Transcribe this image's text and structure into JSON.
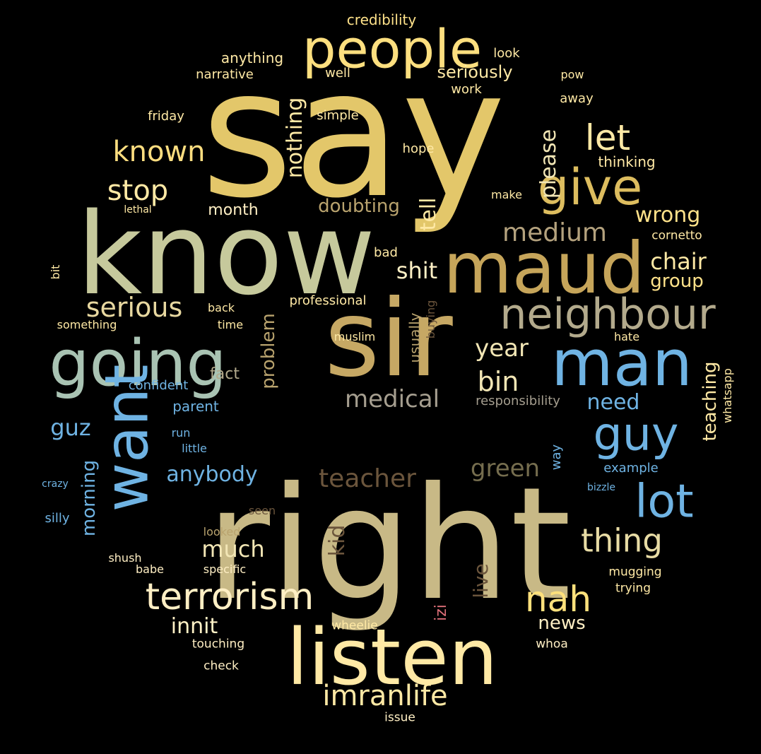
{
  "words": [
    {
      "text": "say",
      "color": "#E3C76A",
      "vertical": false
    },
    {
      "text": "know",
      "color": "#C6C99C",
      "vertical": false
    },
    {
      "text": "right",
      "color": "#C8B986",
      "vertical": false
    },
    {
      "text": "sir",
      "color": "#C6A864",
      "vertical": false
    },
    {
      "text": "listen",
      "color": "#FFE9A5",
      "vertical": false
    },
    {
      "text": "people",
      "color": "#FDDF7F",
      "vertical": false
    },
    {
      "text": "maud",
      "color": "#C6A55A",
      "vertical": false
    },
    {
      "text": "going",
      "color": "#A9C3B3",
      "vertical": false
    },
    {
      "text": "man",
      "color": "#6FB3E3",
      "vertical": false
    },
    {
      "text": "want",
      "color": "#6FB3E3",
      "vertical": true
    },
    {
      "text": "give",
      "color": "#DDBD5F",
      "vertical": false
    },
    {
      "text": "neighbour",
      "color": "#B3AA8C",
      "vertical": false
    },
    {
      "text": "guy",
      "color": "#6FB3E3",
      "vertical": false
    },
    {
      "text": "lot",
      "color": "#6FB3E3",
      "vertical": false
    },
    {
      "text": "terrorism",
      "color": "#FFEFC4",
      "vertical": false
    },
    {
      "text": "imranlife",
      "color": "#FFE9A5",
      "vertical": false
    },
    {
      "text": "nah",
      "color": "#FFE17C",
      "vertical": false
    },
    {
      "text": "thing",
      "color": "#E8DCA5",
      "vertical": false
    },
    {
      "text": "let",
      "color": "#FFE9A5",
      "vertical": false
    },
    {
      "text": "known",
      "color": "#FFDE80",
      "vertical": false
    },
    {
      "text": "stop",
      "color": "#FFE9A5",
      "vertical": false
    },
    {
      "text": "serious",
      "color": "#E8D8A0",
      "vertical": false
    },
    {
      "text": "medium",
      "color": "#B4A27E",
      "vertical": false
    },
    {
      "text": "medical",
      "color": "#A59E8F",
      "vertical": false
    },
    {
      "text": "teacher",
      "color": "#6B553C",
      "vertical": false
    },
    {
      "text": "green",
      "color": "#756D4E",
      "vertical": false
    },
    {
      "text": "year",
      "color": "#F2E6B5",
      "vertical": false
    },
    {
      "text": "bin",
      "color": "#F2E6B5",
      "vertical": false
    },
    {
      "text": "shit",
      "color": "#FFF1C6",
      "vertical": false
    },
    {
      "text": "chair",
      "color": "#FFE9A5",
      "vertical": false
    },
    {
      "text": "wrong",
      "color": "#FFE28A",
      "vertical": false
    },
    {
      "text": "please",
      "color": "#F2E6B5",
      "vertical": true
    },
    {
      "text": "tell",
      "color": "#FFE9A5",
      "vertical": true
    },
    {
      "text": "nothing",
      "color": "#FFE9A5",
      "vertical": true
    },
    {
      "text": "doubting",
      "color": "#B9A36E",
      "vertical": false
    },
    {
      "text": "problem",
      "color": "#B9A36E",
      "vertical": true
    },
    {
      "text": "teaching",
      "color": "#FFE9A5",
      "vertical": true
    },
    {
      "text": "much",
      "color": "#F2E6B5",
      "vertical": false
    },
    {
      "text": "anybody",
      "color": "#6FB3E3",
      "vertical": false
    },
    {
      "text": "morning",
      "color": "#6FB3E3",
      "vertical": true
    },
    {
      "text": "guz",
      "color": "#6FB3E3",
      "vertical": false
    },
    {
      "text": "kid",
      "color": "#6B553C",
      "vertical": true
    },
    {
      "text": "live",
      "color": "#6B553C",
      "vertical": true
    },
    {
      "text": "innit",
      "color": "#FFF1C6",
      "vertical": false
    },
    {
      "text": "news",
      "color": "#FFEFC4",
      "vertical": false
    },
    {
      "text": "need",
      "color": "#6FB3E3",
      "vertical": false
    },
    {
      "text": "group",
      "color": "#FFE28A",
      "vertical": false
    },
    {
      "text": "seriously",
      "color": "#FFE9A5",
      "vertical": false
    },
    {
      "text": "month",
      "color": "#FFEFC4",
      "vertical": false
    },
    {
      "text": "fact",
      "color": "#B3AA8C",
      "vertical": false
    },
    {
      "text": "usually",
      "color": "#B9A36E",
      "vertical": true
    },
    {
      "text": "buying",
      "color": "#6B553C",
      "vertical": true
    },
    {
      "text": "izi",
      "color": "#E0707A",
      "vertical": true
    },
    {
      "text": "credibility",
      "color": "#FFE28A",
      "vertical": false
    },
    {
      "text": "anything",
      "color": "#FFE9A5",
      "vertical": false
    },
    {
      "text": "look",
      "color": "#FFE9A5",
      "vertical": false
    },
    {
      "text": "narrative",
      "color": "#FFE9A5",
      "vertical": false
    },
    {
      "text": "well",
      "color": "#FFE9A5",
      "vertical": false
    },
    {
      "text": "pow",
      "color": "#FFE9A5",
      "vertical": false
    },
    {
      "text": "work",
      "color": "#FFE9A5",
      "vertical": false
    },
    {
      "text": "away",
      "color": "#FFE9A5",
      "vertical": false
    },
    {
      "text": "friday",
      "color": "#FFE9A5",
      "vertical": false
    },
    {
      "text": "simple",
      "color": "#FFE9A5",
      "vertical": false
    },
    {
      "text": "hope",
      "color": "#FFE9A5",
      "vertical": false
    },
    {
      "text": "thinking",
      "color": "#FFE9A5",
      "vertical": false
    },
    {
      "text": "make",
      "color": "#FFE9A5",
      "vertical": false
    },
    {
      "text": "lethal",
      "color": "#FFE9A5",
      "vertical": false
    },
    {
      "text": "cornetto",
      "color": "#FFE9A5",
      "vertical": false
    },
    {
      "text": "bad",
      "color": "#FFE9A5",
      "vertical": false
    },
    {
      "text": "bit",
      "color": "#FFE9A5",
      "vertical": true
    },
    {
      "text": "professional",
      "color": "#FFE9A5",
      "vertical": false
    },
    {
      "text": "back",
      "color": "#FFE9A5",
      "vertical": false
    },
    {
      "text": "something",
      "color": "#FFE9A5",
      "vertical": false
    },
    {
      "text": "time",
      "color": "#FFE9A5",
      "vertical": false
    },
    {
      "text": "muslim",
      "color": "#FFE9A5",
      "vertical": false
    },
    {
      "text": "hate",
      "color": "#FFE9A5",
      "vertical": false
    },
    {
      "text": "whatsapp",
      "color": "#FFE9A5",
      "vertical": true
    },
    {
      "text": "confident",
      "color": "#6FB3E3",
      "vertical": false
    },
    {
      "text": "responsibility",
      "color": "#A59E8F",
      "vertical": false
    },
    {
      "text": "parent",
      "color": "#6FB3E3",
      "vertical": false
    },
    {
      "text": "run",
      "color": "#6FB3E3",
      "vertical": false
    },
    {
      "text": "little",
      "color": "#6FB3E3",
      "vertical": false
    },
    {
      "text": "way",
      "color": "#6FB3E3",
      "vertical": true
    },
    {
      "text": "example",
      "color": "#6FB3E3",
      "vertical": false
    },
    {
      "text": "crazy",
      "color": "#6FB3E3",
      "vertical": false
    },
    {
      "text": "bizzle",
      "color": "#6FB3E3",
      "vertical": false
    },
    {
      "text": "silly",
      "color": "#6FB3E3",
      "vertical": false
    },
    {
      "text": "seen",
      "color": "#6B553C",
      "vertical": false
    },
    {
      "text": "looked",
      "color": "#B9A36E",
      "vertical": false
    },
    {
      "text": "shush",
      "color": "#FFEFC4",
      "vertical": false
    },
    {
      "text": "babe",
      "color": "#FFEFC4",
      "vertical": false
    },
    {
      "text": "specific",
      "color": "#FFEFC4",
      "vertical": false
    },
    {
      "text": "mugging",
      "color": "#FFE9A5",
      "vertical": false
    },
    {
      "text": "trying",
      "color": "#FFE9A5",
      "vertical": false
    },
    {
      "text": "wheelie",
      "color": "#FFE9A5",
      "vertical": false
    },
    {
      "text": "touching",
      "color": "#FFEFC4",
      "vertical": false
    },
    {
      "text": "whoa",
      "color": "#FFEFC4",
      "vertical": false
    },
    {
      "text": "check",
      "color": "#FFEFC4",
      "vertical": false
    },
    {
      "text": "issue",
      "color": "#FFEFC4",
      "vertical": false
    }
  ]
}
